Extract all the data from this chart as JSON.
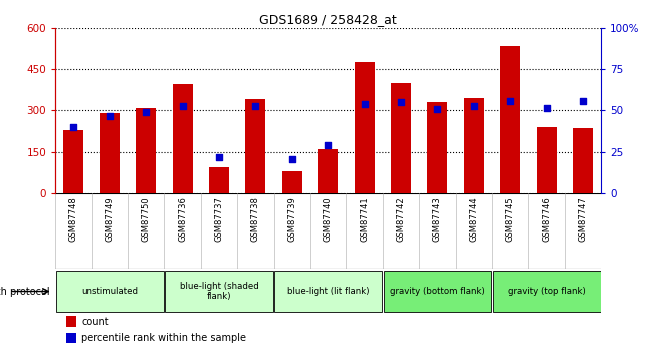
{
  "title": "GDS1689 / 258428_at",
  "samples": [
    "GSM87748",
    "GSM87749",
    "GSM87750",
    "GSM87736",
    "GSM87737",
    "GSM87738",
    "GSM87739",
    "GSM87740",
    "GSM87741",
    "GSM87742",
    "GSM87743",
    "GSM87744",
    "GSM87745",
    "GSM87746",
    "GSM87747"
  ],
  "counts": [
    230,
    290,
    310,
    395,
    95,
    340,
    80,
    160,
    475,
    400,
    330,
    345,
    535,
    240,
    235
  ],
  "dot_values": [
    240,
    280,
    295,
    315,
    130,
    315,
    125,
    175,
    325,
    330,
    305,
    315,
    335,
    310,
    335
  ],
  "groups": [
    {
      "label": "unstimulated",
      "start": 0,
      "end": 2,
      "color": "#ccffcc"
    },
    {
      "label": "blue-light (shaded\nflank)",
      "start": 3,
      "end": 5,
      "color": "#ccffcc"
    },
    {
      "label": "blue-light (lit flank)",
      "start": 6,
      "end": 8,
      "color": "#ccffcc"
    },
    {
      "label": "gravity (bottom flank)",
      "start": 9,
      "end": 11,
      "color": "#77ee77"
    },
    {
      "label": "gravity (top flank)",
      "start": 12,
      "end": 14,
      "color": "#77ee77"
    }
  ],
  "ylim_left": [
    0,
    600
  ],
  "ylim_right": [
    0,
    100
  ],
  "yticks_left": [
    0,
    150,
    300,
    450,
    600
  ],
  "yticks_right": [
    0,
    25,
    50,
    75,
    100
  ],
  "bar_color": "#cc0000",
  "dot_color": "#0000cc",
  "bg_color": "#c8c8c8",
  "axis_left_color": "#cc0000",
  "axis_right_color": "#0000cc",
  "fig_width": 6.5,
  "fig_height": 3.45,
  "dpi": 100
}
